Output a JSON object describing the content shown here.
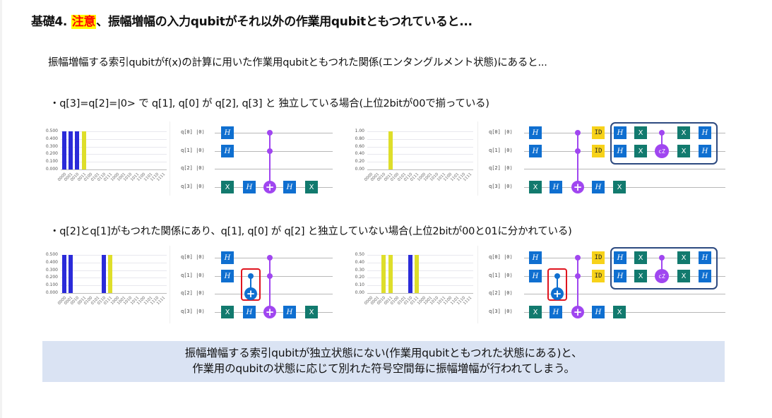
{
  "title": {
    "prefix": "基礎4. ",
    "highlight": "注意",
    "suffix": "、振幅増幅の入力qubitがそれ以外の作業用qubitともつれていると..."
  },
  "intro": "振幅増幅する索引qubitがf(x)の計算に用いた作業用qubitともつれた関係(エンタングルメント状態)にあると...",
  "case1": {
    "text": "・q[3]=q[2]=|0> で q[1], q[0] が q[2], q[3] と 独立している場合(上位2bitが00で揃っている)"
  },
  "case2": {
    "text": "・q[2]とq[1]がもつれた関係にあり、q[1], q[0] が q[2] と独立していない場合(上位2bitが00と01に分かれている)"
  },
  "summary": {
    "line1": "振幅増幅する索引qubitが独立状態にない(作業用qubitともつれた状態にある)と、",
    "line2": "作業用のqubitの状態に応じて別れた符号空間毎に振幅増幅が行われてしまう。"
  },
  "colors": {
    "title_highlight_bg": "#ffff00",
    "title_highlight_fg": "#ff0000",
    "bar_blue": "#2b2bd9",
    "bar_yellow": "#dede2a",
    "gate_h": "#0f6fd0",
    "gate_x": "#127a6e",
    "gate_id": "#f7d21a",
    "control_purple": "#a046f0",
    "control_blue": "#0f6fd0",
    "red_box": "#e0141e",
    "blue_box": "#2d4a80",
    "summary_bg": "#dae3f3"
  },
  "circuit_labels": {
    "qubits": [
      "q[0]",
      "q[1]",
      "q[2]",
      "q[3]"
    ],
    "init": "|0⟩",
    "h": "H",
    "x": "X",
    "id": "ID",
    "cz": "cZ",
    "plus": "+"
  },
  "chart_data": [
    {
      "type": "bar",
      "title": "Case 1 — before amplitude amplification",
      "categories": [
        "0000",
        "0001",
        "0010",
        "0011",
        "0100",
        "0101",
        "0110",
        "0111",
        "1000",
        "1001",
        "1010",
        "1011",
        "1100",
        "1101",
        "1110",
        "1111"
      ],
      "values": [
        0.5,
        0.5,
        0.5,
        0.5,
        0,
        0,
        0,
        0,
        0,
        0,
        0,
        0,
        0,
        0,
        0,
        0
      ],
      "bar_colors": [
        "blue",
        "blue",
        "blue",
        "yellow",
        "",
        "",
        "",
        "",
        "",
        "",
        "",
        "",
        "",
        "",
        "",
        ""
      ],
      "yticks": [
        "0.000",
        "0.100",
        "0.200",
        "0.300",
        "0.400",
        "0.500"
      ],
      "ylim": [
        0,
        0.5
      ],
      "grid": true
    },
    {
      "type": "bar",
      "title": "Case 1 — after amplitude amplification",
      "categories": [
        "0000",
        "0001",
        "0010",
        "0011",
        "0100",
        "0101",
        "0110",
        "0111",
        "1000",
        "1001",
        "1010",
        "1011",
        "1100",
        "1101",
        "1110",
        "1111"
      ],
      "values": [
        0,
        0,
        0,
        1.0,
        0,
        0,
        0,
        0,
        0,
        0,
        0,
        0,
        0,
        0,
        0,
        0
      ],
      "bar_colors": [
        "",
        "",
        "",
        "yellow",
        "",
        "",
        "",
        "",
        "",
        "",
        "",
        "",
        "",
        "",
        "",
        ""
      ],
      "yticks": [
        "0.00",
        "0.20",
        "0.40",
        "0.60",
        "0.80",
        "1.00"
      ],
      "ylim": [
        0,
        1.0
      ],
      "grid": true
    },
    {
      "type": "bar",
      "title": "Case 2 — before amplitude amplification",
      "categories": [
        "0000",
        "0001",
        "0010",
        "0011",
        "0100",
        "0101",
        "0110",
        "0111",
        "1000",
        "1001",
        "1010",
        "1011",
        "1100",
        "1101",
        "1110",
        "1111"
      ],
      "values": [
        0.5,
        0.5,
        0,
        0,
        0,
        0,
        0.5,
        0.5,
        0,
        0,
        0,
        0,
        0,
        0,
        0,
        0
      ],
      "bar_colors": [
        "blue",
        "blue",
        "",
        "",
        "",
        "",
        "blue",
        "yellow",
        "",
        "",
        "",
        "",
        "",
        "",
        "",
        ""
      ],
      "yticks": [
        "0.000",
        "0.100",
        "0.200",
        "0.300",
        "0.400",
        "0.500"
      ],
      "ylim": [
        0,
        0.5
      ],
      "grid": true
    },
    {
      "type": "bar",
      "title": "Case 2 — after amplitude amplification",
      "categories": [
        "0000",
        "0001",
        "0010",
        "0011",
        "0100",
        "0101",
        "0110",
        "0111",
        "1000",
        "1001",
        "1010",
        "1011",
        "1100",
        "1101",
        "1110",
        "1111"
      ],
      "values": [
        0,
        0,
        0.5,
        0.5,
        0,
        0,
        0.5,
        0.5,
        0,
        0,
        0,
        0,
        0,
        0,
        0,
        0
      ],
      "bar_colors": [
        "",
        "",
        "yellow",
        "yellow",
        "",
        "",
        "blue",
        "yellow",
        "",
        "",
        "",
        "",
        "",
        "",
        "",
        ""
      ],
      "yticks": [
        "0.00",
        "0.10",
        "0.20",
        "0.30",
        "0.40",
        "0.50"
      ],
      "ylim": [
        0,
        0.5
      ],
      "grid": true
    }
  ]
}
